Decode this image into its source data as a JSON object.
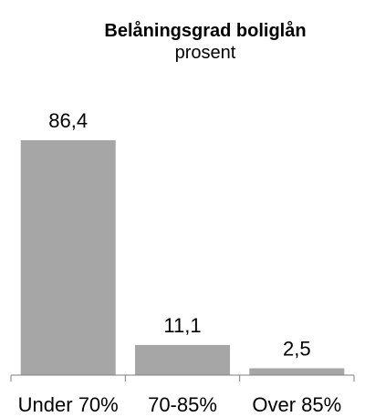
{
  "chart_data": {
    "type": "bar",
    "title": "Belåningsgrad boliglån",
    "subtitle": "prosent",
    "categories": [
      "Under 70%",
      "70-85%",
      "Over 85%"
    ],
    "values": [
      86.4,
      11.1,
      2.5
    ],
    "value_labels": [
      "86,4",
      "11,1",
      "2,5"
    ],
    "xlabel": "",
    "ylabel": "",
    "ylim": [
      0,
      86.4
    ],
    "grid": false,
    "legend": "none",
    "colors": {
      "bar": "#a6a6a6",
      "axis": "#7f7f7f"
    }
  }
}
